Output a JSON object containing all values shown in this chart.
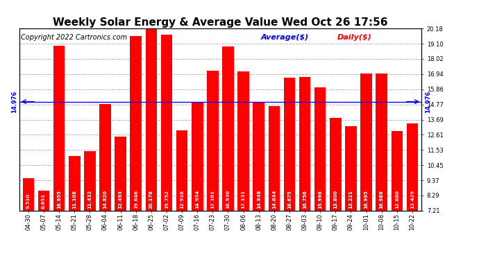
{
  "title": "Weekly Solar Energy & Average Value Wed Oct 26 17:56",
  "copyright": "Copyright 2022 Cartronics.com",
  "legend_average": "Average($)",
  "legend_daily": "Daily($)",
  "categories": [
    "04-30",
    "05-07",
    "05-14",
    "05-21",
    "05-28",
    "06-04",
    "06-11",
    "06-18",
    "06-25",
    "07-02",
    "07-09",
    "07-16",
    "07-23",
    "07-30",
    "08-06",
    "08-13",
    "08-20",
    "08-27",
    "09-03",
    "09-10",
    "09-17",
    "09-24",
    "10-01",
    "10-08",
    "10-15",
    "10-22"
  ],
  "values": [
    9.51,
    8.651,
    18.955,
    11.108,
    11.432,
    14.82,
    12.493,
    19.646,
    20.178,
    19.752,
    12.918,
    14.954,
    17.161,
    18.93,
    17.131,
    14.948,
    14.644,
    16.675,
    16.756,
    15.996,
    13.8,
    13.221,
    16.995,
    16.988,
    12.88,
    13.429
  ],
  "average_value": 14.976,
  "bar_color": "#ff0000",
  "average_line_color": "#0000ff",
  "average_label_color": "#0000ff",
  "average_label": "14.976",
  "background_color": "#ffffff",
  "grid_color": "#aaaaaa",
  "yticks_right": [
    7.21,
    8.29,
    9.37,
    10.45,
    11.53,
    12.61,
    13.69,
    14.77,
    15.86,
    16.94,
    18.02,
    19.1,
    20.18
  ],
  "ylim": [
    7.21,
    20.18
  ],
  "title_fontsize": 11,
  "copyright_fontsize": 7,
  "legend_fontsize": 8,
  "tick_fontsize": 6,
  "bar_label_fontsize": 5
}
